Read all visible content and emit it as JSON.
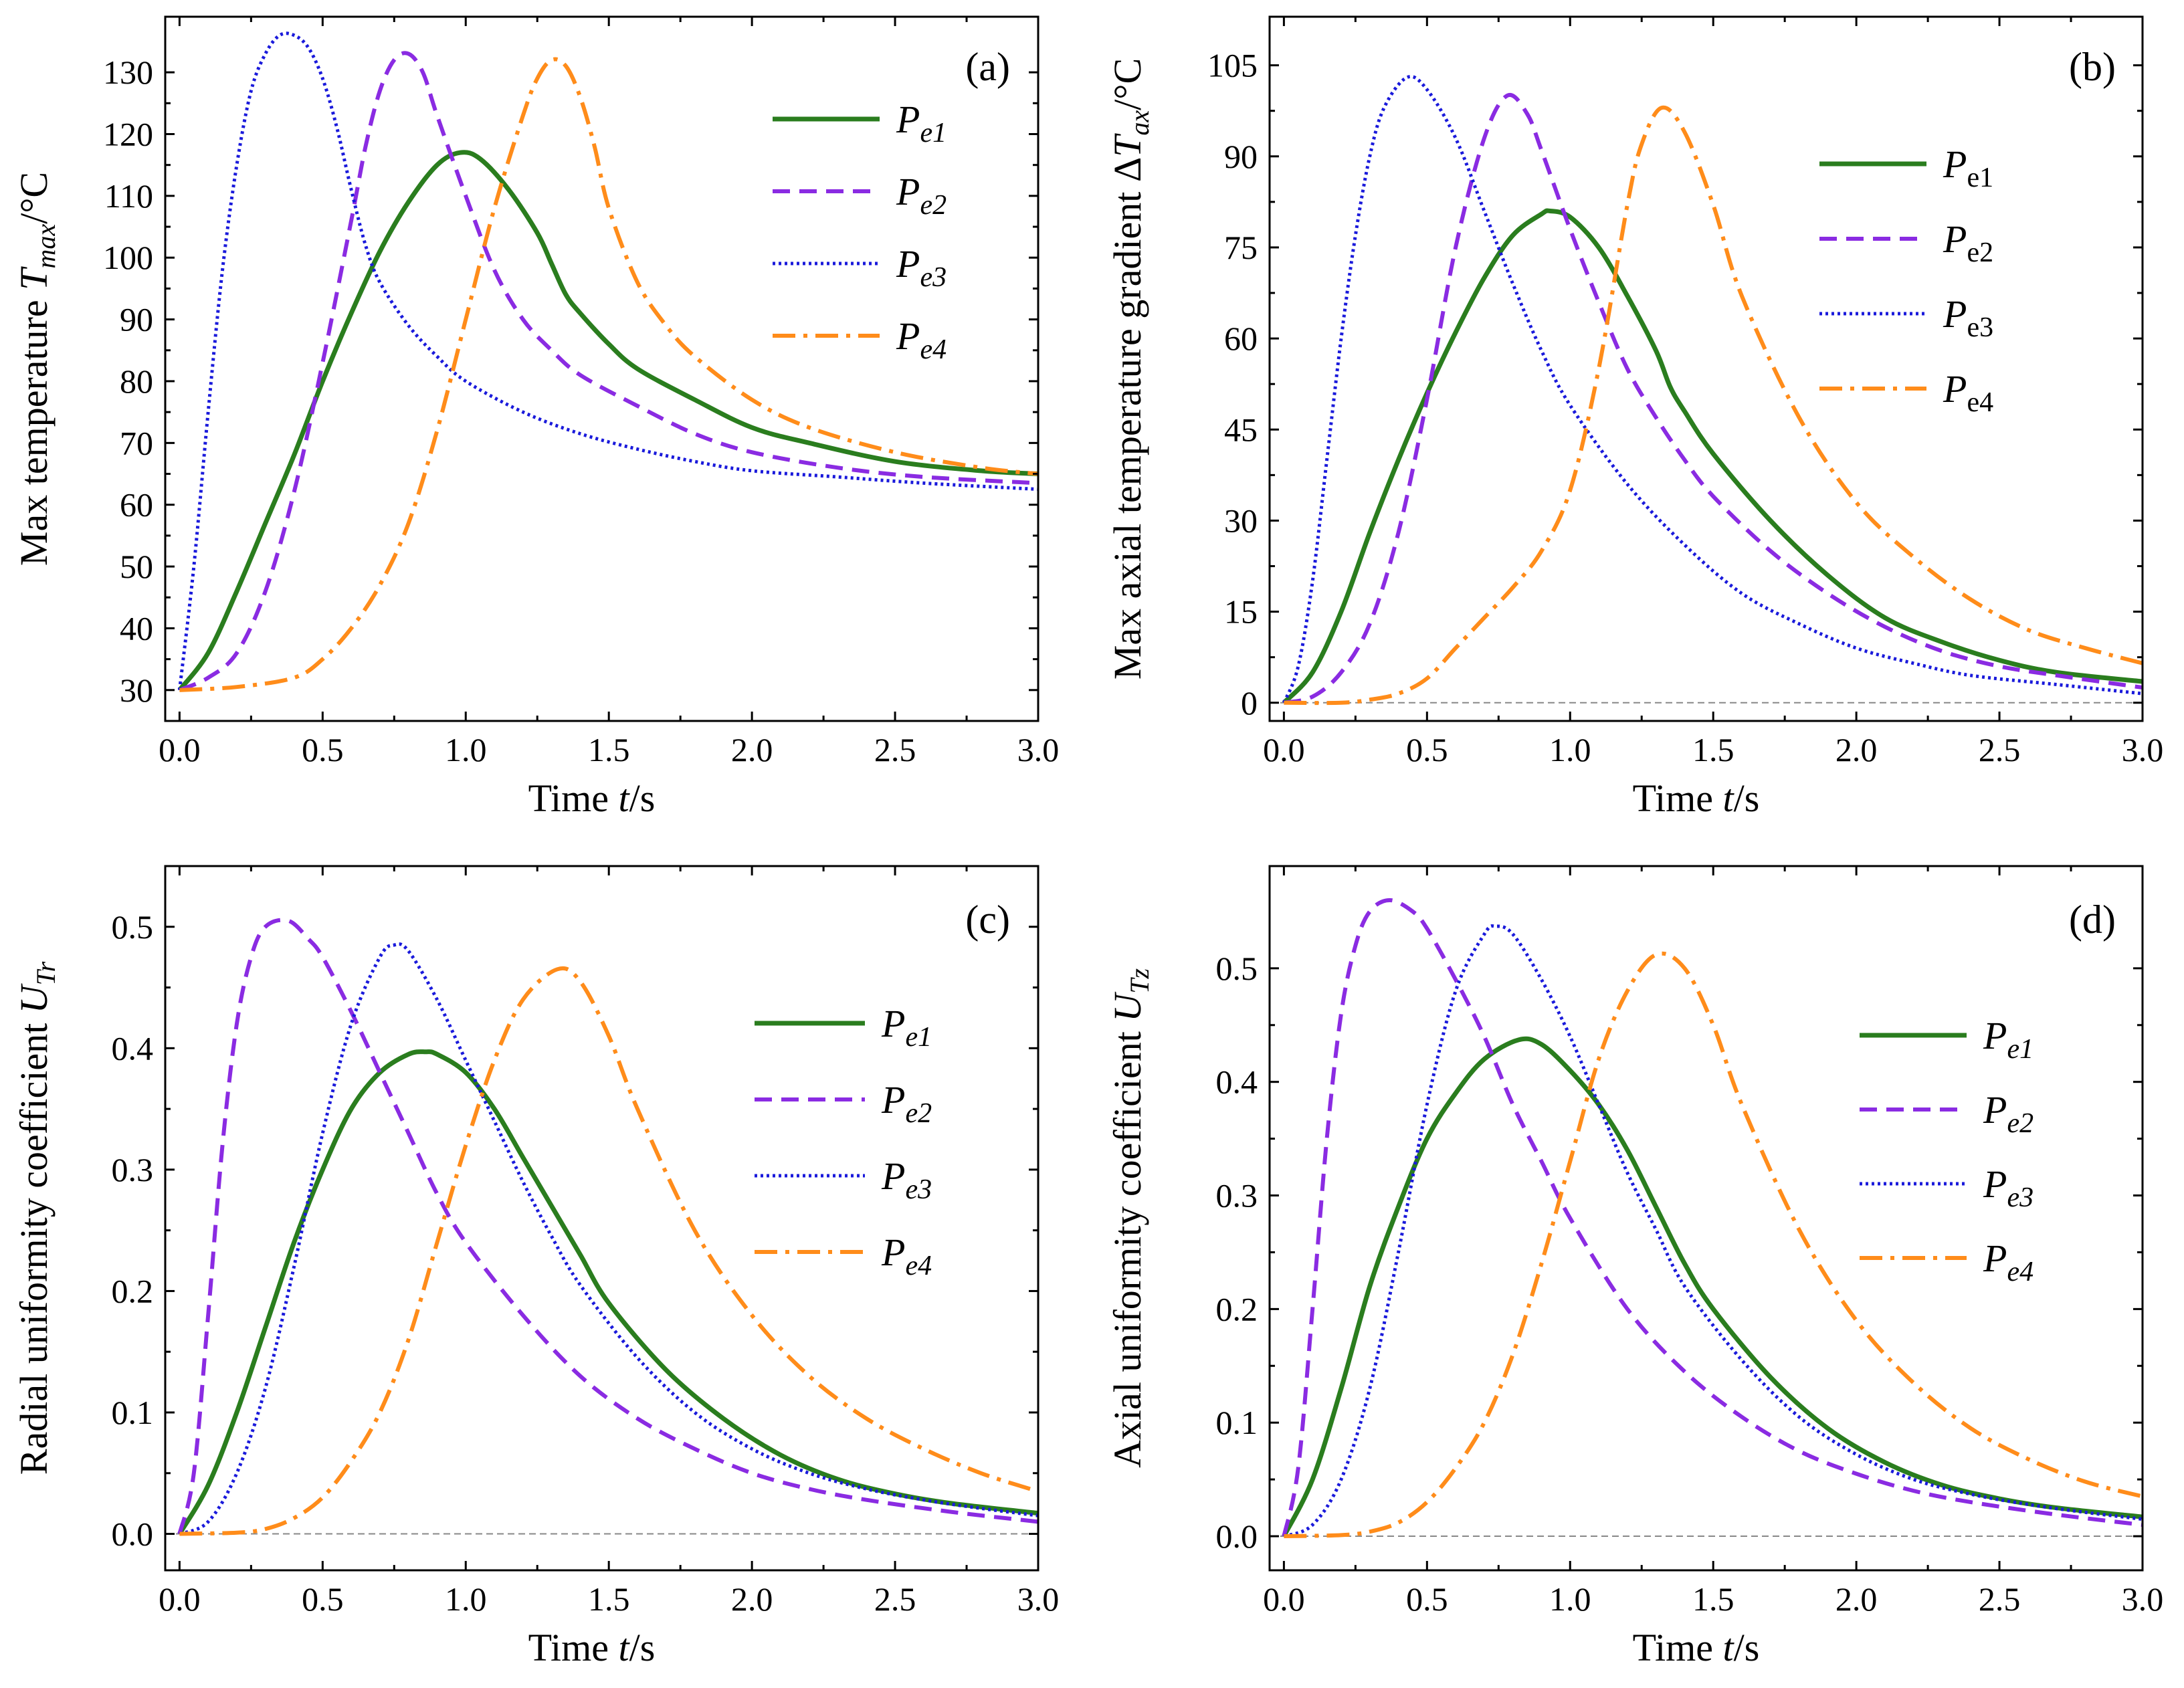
{
  "colors": {
    "Pe1": "#2a7d1e",
    "Pe2": "#8a2be2",
    "Pe3": "#1a1adb",
    "Pe4": "#ff8c1a",
    "zero_line": "#888888",
    "axis": "#000000"
  },
  "chart_data": [
    {
      "id": "a",
      "type": "line",
      "panel_label": "(a)",
      "xlabel": {
        "prefix": "Time ",
        "var": "t",
        "suffix": "/s"
      },
      "ylabel": {
        "prefix": "Max temperature ",
        "var": "T",
        "sub": "max",
        "suffix": "/°C"
      },
      "xlim": [
        -0.05,
        3.0
      ],
      "ylim": [
        25,
        139
      ],
      "xticks": [
        "0.0",
        "0.5",
        "1.0",
        "1.5",
        "2.0",
        "2.5",
        "3.0"
      ],
      "yticks": [
        "30",
        "40",
        "50",
        "60",
        "70",
        "80",
        "90",
        "100",
        "110",
        "120",
        "130"
      ],
      "zero_line": false,
      "legend_position": "top-right",
      "legend_style": "italic",
      "legend": [
        {
          "main": "P",
          "sub": "e1"
        },
        {
          "main": "P",
          "sub": "e2"
        },
        {
          "main": "P",
          "sub": "e3"
        },
        {
          "main": "P",
          "sub": "e4"
        }
      ],
      "series": [
        {
          "name": "Pe1",
          "x": [
            0,
            0.1,
            0.2,
            0.3,
            0.4,
            0.5,
            0.6,
            0.7,
            0.8,
            0.9,
            0.98,
            1.05,
            1.15,
            1.25,
            1.3,
            1.35,
            1.4,
            1.5,
            1.6,
            1.8,
            2.0,
            2.2,
            2.5,
            2.8,
            3.0
          ],
          "y": [
            30,
            36,
            46,
            57,
            68,
            80,
            91,
            101,
            109,
            115,
            117,
            116,
            111,
            104,
            99,
            94,
            91,
            86,
            82,
            77,
            72.5,
            70,
            67,
            65.5,
            65
          ]
        },
        {
          "name": "Pe2",
          "x": [
            0,
            0.1,
            0.2,
            0.3,
            0.4,
            0.5,
            0.6,
            0.65,
            0.7,
            0.75,
            0.8,
            0.85,
            0.9,
            1.0,
            1.1,
            1.2,
            1.3,
            1.4,
            1.6,
            1.8,
            2.0,
            2.3,
            2.6,
            3.0
          ],
          "y": [
            30,
            32,
            36,
            46,
            62,
            83,
            106,
            118,
            127,
            132,
            133,
            130,
            123,
            110,
            98,
            90,
            85,
            81,
            76,
            71.5,
            68.5,
            66,
            64.5,
            63.5
          ]
        },
        {
          "name": "Pe3",
          "x": [
            0,
            0.05,
            0.1,
            0.15,
            0.2,
            0.25,
            0.3,
            0.35,
            0.4,
            0.45,
            0.5,
            0.55,
            0.6,
            0.65,
            0.7,
            0.8,
            0.9,
            1.0,
            1.2,
            1.4,
            1.6,
            1.8,
            2.0,
            2.3,
            2.6,
            3.0
          ],
          "y": [
            30,
            50,
            75,
            98,
            115,
            127,
            133,
            136,
            136,
            134,
            129,
            121,
            111,
            102,
            96,
            89,
            84,
            80,
            75,
            71.5,
            69,
            67,
            65.5,
            64.5,
            63.5,
            62.5
          ]
        },
        {
          "name": "Pe4",
          "x": [
            0,
            0.2,
            0.4,
            0.5,
            0.6,
            0.7,
            0.8,
            0.9,
            1.0,
            1.1,
            1.2,
            1.25,
            1.3,
            1.35,
            1.4,
            1.45,
            1.5,
            1.6,
            1.7,
            1.8,
            2.0,
            2.2,
            2.5,
            2.8,
            3.0
          ],
          "y": [
            30,
            30.5,
            32,
            35,
            40,
            47,
            57,
            72,
            90,
            108,
            123,
            129,
            132,
            131,
            126,
            118,
            108,
            96,
            89,
            84,
            77,
            72.5,
            68.5,
            66,
            65
          ]
        }
      ]
    },
    {
      "id": "b",
      "type": "line",
      "panel_label": "(b)",
      "xlabel": {
        "prefix": "Time ",
        "var": "t",
        "suffix": "/s"
      },
      "ylabel": {
        "prefix": "Max axial temperature gradient Δ",
        "var": "T",
        "sub": "ax",
        "suffix": "/°C"
      },
      "xlim": [
        -0.05,
        3.0
      ],
      "ylim": [
        -3,
        113
      ],
      "xticks": [
        "0.0",
        "0.5",
        "1.0",
        "1.5",
        "2.0",
        "2.5",
        "3.0"
      ],
      "yticks": [
        "0",
        "15",
        "30",
        "45",
        "60",
        "75",
        "90",
        "105"
      ],
      "zero_line": true,
      "legend_position": "top-right",
      "legend_style": "upright-subscript",
      "legend": [
        {
          "main": "P",
          "sub": "e1"
        },
        {
          "main": "P",
          "sub": "e2"
        },
        {
          "main": "P",
          "sub": "e3"
        },
        {
          "main": "P",
          "sub": "e4"
        }
      ],
      "series": [
        {
          "name": "Pe1",
          "x": [
            0,
            0.1,
            0.2,
            0.3,
            0.4,
            0.5,
            0.6,
            0.7,
            0.8,
            0.9,
            0.93,
            1.0,
            1.1,
            1.2,
            1.3,
            1.35,
            1.4,
            1.5,
            1.7,
            1.9,
            2.1,
            2.3,
            2.5,
            2.7,
            3.0
          ],
          "y": [
            0,
            5,
            15,
            28,
            40,
            51,
            61,
            70,
            77,
            80.5,
            81,
            80,
            75,
            67,
            58,
            52,
            48,
            41,
            30,
            21,
            14,
            10,
            7,
            5,
            3.5
          ]
        },
        {
          "name": "Pe2",
          "x": [
            0,
            0.1,
            0.2,
            0.3,
            0.4,
            0.5,
            0.6,
            0.7,
            0.78,
            0.85,
            0.9,
            1.0,
            1.1,
            1.2,
            1.3,
            1.4,
            1.5,
            1.7,
            1.9,
            2.1,
            2.3,
            2.5,
            2.7,
            3.0
          ],
          "y": [
            0,
            1,
            5,
            13,
            28,
            50,
            75,
            93,
            100,
            97,
            91,
            78,
            66,
            55,
            47,
            40,
            34,
            25,
            18,
            12.5,
            8.5,
            6,
            4.5,
            2.5
          ]
        },
        {
          "name": "Pe3",
          "x": [
            0,
            0.05,
            0.1,
            0.15,
            0.2,
            0.25,
            0.3,
            0.35,
            0.43,
            0.5,
            0.6,
            0.7,
            0.8,
            0.9,
            1.0,
            1.2,
            1.4,
            1.6,
            1.8,
            2.0,
            2.2,
            2.4,
            2.7,
            3.0
          ],
          "y": [
            0,
            6,
            20,
            40,
            60,
            77,
            90,
            98,
            103,
            101,
            93,
            81,
            69,
            58,
            49,
            36,
            26,
            18,
            13,
            9,
            6.5,
            4.5,
            3,
            1.5
          ]
        },
        {
          "name": "Pe4",
          "x": [
            0,
            0.2,
            0.3,
            0.4,
            0.5,
            0.6,
            0.7,
            0.8,
            0.9,
            1.0,
            1.1,
            1.2,
            1.25,
            1.32,
            1.4,
            1.5,
            1.6,
            1.8,
            2.0,
            2.2,
            2.4,
            2.6,
            2.8,
            3.0
          ],
          "y": [
            0,
            0,
            0.5,
            1.5,
            4,
            9,
            14,
            19,
            25,
            35,
            55,
            82,
            92,
            98,
            94,
            82,
            67,
            47,
            33,
            24,
            17,
            12,
            9,
            6.5
          ]
        }
      ]
    },
    {
      "id": "c",
      "type": "line",
      "panel_label": "(c)",
      "xlabel": {
        "prefix": "Time ",
        "var": "t",
        "suffix": "/s"
      },
      "ylabel": {
        "prefix": "Radial uniformity coefficient ",
        "var": "U",
        "sub": "Tr",
        "suffix": ""
      },
      "xlim": [
        -0.05,
        3.0
      ],
      "ylim": [
        -0.03,
        0.55
      ],
      "xticks": [
        "0.0",
        "0.5",
        "1.0",
        "1.5",
        "2.0",
        "2.5",
        "3.0"
      ],
      "yticks": [
        "0.0",
        "0.1",
        "0.2",
        "0.3",
        "0.4",
        "0.5"
      ],
      "zero_line": true,
      "legend_position": "top-right",
      "legend_style": "italic",
      "legend": [
        {
          "main": "P",
          "sub": "e1"
        },
        {
          "main": "P",
          "sub": "e2"
        },
        {
          "main": "P",
          "sub": "e3"
        },
        {
          "main": "P",
          "sub": "e4"
        }
      ],
      "series": [
        {
          "name": "Pe1",
          "x": [
            0,
            0.1,
            0.2,
            0.3,
            0.4,
            0.5,
            0.6,
            0.7,
            0.8,
            0.86,
            0.9,
            1.0,
            1.1,
            1.2,
            1.3,
            1.4,
            1.5,
            1.7,
            1.9,
            2.1,
            2.3,
            2.5,
            2.7,
            3.0
          ],
          "y": [
            0,
            0.04,
            0.1,
            0.17,
            0.24,
            0.3,
            0.35,
            0.38,
            0.395,
            0.397,
            0.395,
            0.38,
            0.35,
            0.31,
            0.27,
            0.23,
            0.19,
            0.135,
            0.095,
            0.065,
            0.045,
            0.033,
            0.025,
            0.017
          ]
        },
        {
          "name": "Pe2",
          "x": [
            0,
            0.05,
            0.1,
            0.15,
            0.2,
            0.25,
            0.3,
            0.38,
            0.45,
            0.5,
            0.6,
            0.7,
            0.8,
            0.9,
            1.0,
            1.2,
            1.4,
            1.6,
            1.8,
            2.0,
            2.2,
            2.4,
            2.7,
            3.0
          ],
          "y": [
            0,
            0.05,
            0.18,
            0.32,
            0.42,
            0.475,
            0.5,
            0.505,
            0.49,
            0.475,
            0.43,
            0.38,
            0.33,
            0.28,
            0.24,
            0.18,
            0.13,
            0.095,
            0.07,
            0.05,
            0.037,
            0.028,
            0.018,
            0.01
          ]
        },
        {
          "name": "Pe3",
          "x": [
            0,
            0.1,
            0.2,
            0.3,
            0.4,
            0.5,
            0.6,
            0.7,
            0.75,
            0.8,
            0.9,
            1.0,
            1.1,
            1.2,
            1.3,
            1.4,
            1.6,
            1.8,
            2.0,
            2.2,
            2.4,
            2.6,
            2.8,
            3.0
          ],
          "y": [
            0,
            0.01,
            0.05,
            0.12,
            0.22,
            0.33,
            0.42,
            0.475,
            0.485,
            0.48,
            0.44,
            0.39,
            0.34,
            0.29,
            0.245,
            0.205,
            0.145,
            0.1,
            0.07,
            0.05,
            0.037,
            0.028,
            0.021,
            0.015
          ]
        },
        {
          "name": "Pe4",
          "x": [
            0,
            0.2,
            0.3,
            0.4,
            0.5,
            0.6,
            0.7,
            0.8,
            0.9,
            1.0,
            1.1,
            1.2,
            1.32,
            1.4,
            1.5,
            1.6,
            1.8,
            2.0,
            2.2,
            2.4,
            2.6,
            2.8,
            3.0
          ],
          "y": [
            0,
            0.001,
            0.004,
            0.013,
            0.03,
            0.06,
            0.1,
            0.16,
            0.24,
            0.32,
            0.39,
            0.44,
            0.465,
            0.455,
            0.41,
            0.35,
            0.25,
            0.18,
            0.13,
            0.095,
            0.07,
            0.05,
            0.035
          ]
        }
      ]
    },
    {
      "id": "d",
      "type": "line",
      "panel_label": "(d)",
      "xlabel": {
        "prefix": "Time ",
        "var": "t",
        "suffix": "/s"
      },
      "ylabel": {
        "prefix": "Axial uniformity coefficient ",
        "var": "U",
        "sub": "Tz",
        "suffix": ""
      },
      "xlim": [
        -0.05,
        3.0
      ],
      "ylim": [
        -0.03,
        0.59
      ],
      "xticks": [
        "0.0",
        "0.5",
        "1.0",
        "1.5",
        "2.0",
        "2.5",
        "3.0"
      ],
      "yticks": [
        "0.0",
        "0.1",
        "0.2",
        "0.3",
        "0.4",
        "0.5"
      ],
      "zero_line": true,
      "legend_position": "top-right",
      "legend_style": "italic",
      "legend": [
        {
          "main": "P",
          "sub": "e1"
        },
        {
          "main": "P",
          "sub": "e2"
        },
        {
          "main": "P",
          "sub": "e3"
        },
        {
          "main": "P",
          "sub": "e4"
        }
      ],
      "series": [
        {
          "name": "Pe1",
          "x": [
            0,
            0.1,
            0.2,
            0.3,
            0.4,
            0.5,
            0.6,
            0.7,
            0.82,
            0.9,
            1.0,
            1.1,
            1.2,
            1.3,
            1.4,
            1.5,
            1.7,
            1.9,
            2.1,
            2.3,
            2.5,
            2.7,
            3.0
          ],
          "y": [
            0,
            0.05,
            0.13,
            0.22,
            0.29,
            0.35,
            0.39,
            0.42,
            0.437,
            0.433,
            0.41,
            0.38,
            0.34,
            0.29,
            0.24,
            0.2,
            0.14,
            0.095,
            0.065,
            0.045,
            0.033,
            0.025,
            0.017
          ]
        },
        {
          "name": "Pe2",
          "x": [
            0,
            0.05,
            0.1,
            0.15,
            0.2,
            0.25,
            0.3,
            0.37,
            0.45,
            0.5,
            0.6,
            0.7,
            0.8,
            0.9,
            1.0,
            1.2,
            1.4,
            1.6,
            1.8,
            2.0,
            2.2,
            2.4,
            2.7,
            3.0
          ],
          "y": [
            0,
            0.06,
            0.2,
            0.35,
            0.46,
            0.52,
            0.55,
            0.56,
            0.55,
            0.535,
            0.49,
            0.44,
            0.38,
            0.33,
            0.28,
            0.2,
            0.145,
            0.105,
            0.075,
            0.055,
            0.04,
            0.03,
            0.019,
            0.01
          ]
        },
        {
          "name": "Pe3",
          "x": [
            0,
            0.1,
            0.2,
            0.3,
            0.4,
            0.5,
            0.6,
            0.7,
            0.74,
            0.8,
            0.9,
            1.0,
            1.1,
            1.2,
            1.3,
            1.4,
            1.6,
            1.8,
            2.0,
            2.2,
            2.4,
            2.6,
            2.8,
            3.0
          ],
          "y": [
            0,
            0.01,
            0.05,
            0.13,
            0.25,
            0.38,
            0.48,
            0.53,
            0.537,
            0.53,
            0.49,
            0.44,
            0.38,
            0.32,
            0.27,
            0.22,
            0.155,
            0.105,
            0.072,
            0.05,
            0.037,
            0.028,
            0.021,
            0.015
          ]
        },
        {
          "name": "Pe4",
          "x": [
            0,
            0.2,
            0.3,
            0.4,
            0.5,
            0.6,
            0.7,
            0.8,
            0.9,
            1.0,
            1.1,
            1.2,
            1.3,
            1.4,
            1.5,
            1.6,
            1.8,
            2.0,
            2.2,
            2.4,
            2.6,
            2.8,
            3.0
          ],
          "y": [
            0,
            0.001,
            0.004,
            0.012,
            0.03,
            0.06,
            0.1,
            0.16,
            0.24,
            0.33,
            0.42,
            0.48,
            0.512,
            0.5,
            0.45,
            0.38,
            0.27,
            0.19,
            0.135,
            0.095,
            0.068,
            0.048,
            0.035
          ]
        }
      ]
    }
  ]
}
